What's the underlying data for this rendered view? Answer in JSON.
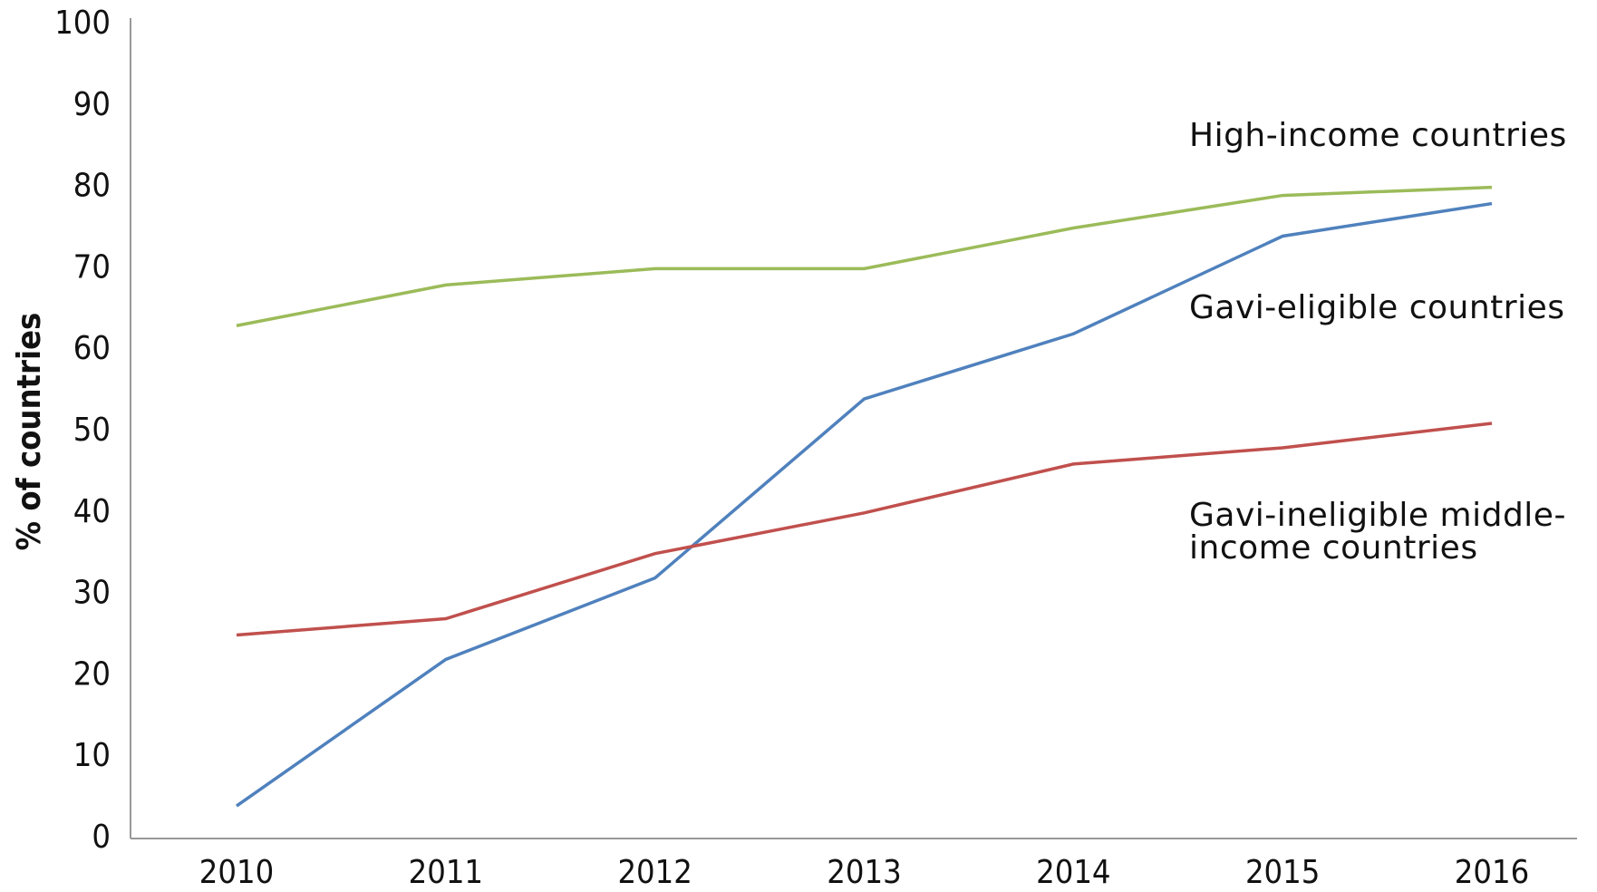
{
  "chart_data": {
    "type": "line",
    "ylabel": "% of countries",
    "categories": [
      "2010",
      "2011",
      "2012",
      "2013",
      "2014",
      "2015",
      "2016"
    ],
    "series": [
      {
        "name": "High-income countries",
        "color": "#9bbb59",
        "values": [
          63,
          68,
          70,
          70,
          75,
          79,
          80
        ]
      },
      {
        "name": "Gavi-eligible countries",
        "color": "#4f81bd",
        "values": [
          4,
          22,
          32,
          54,
          62,
          74,
          78
        ]
      },
      {
        "name": "Gavi-ineligible middle-income countries",
        "color": "#c0504d",
        "values": [
          25,
          27,
          35,
          40,
          46,
          48,
          51
        ]
      }
    ],
    "ylim": [
      0,
      100
    ],
    "yticks": [
      0,
      10,
      20,
      30,
      40,
      50,
      60,
      70,
      80,
      90,
      100
    ],
    "grid": false
  }
}
